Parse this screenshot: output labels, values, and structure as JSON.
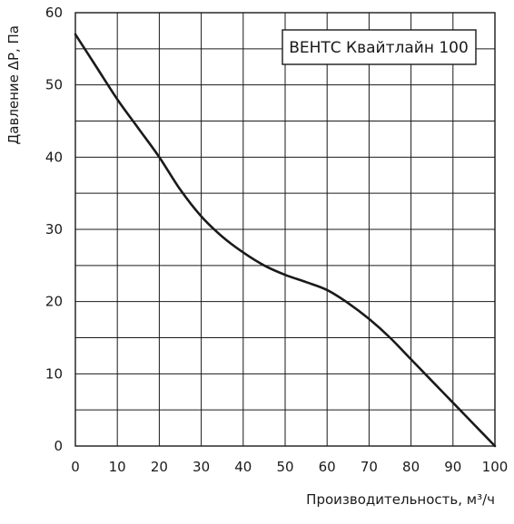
{
  "chart_data": {
    "type": "line",
    "title": "ВЕНТС Квайтлайн 100",
    "xlabel": "Производительность, м³/ч",
    "ylabel": "Давление ΔP, Па",
    "xlim": [
      0,
      100
    ],
    "ylim": [
      0,
      60
    ],
    "x_ticks": [
      0,
      10,
      20,
      30,
      40,
      50,
      60,
      70,
      80,
      90,
      100
    ],
    "y_ticks": [
      0,
      10,
      20,
      30,
      40,
      50,
      60
    ],
    "x_minor_step": 10,
    "y_minor_step": 5,
    "grid": true,
    "legend": "none",
    "series": [
      {
        "x": [
          0,
          5,
          10,
          15,
          20,
          25,
          30,
          35,
          40,
          45,
          50,
          55,
          60,
          65,
          70,
          75,
          80,
          85,
          90,
          95,
          100
        ],
        "y": [
          57,
          52.5,
          48,
          44,
          40,
          35.5,
          31.8,
          29,
          26.8,
          25,
          23.7,
          22.7,
          21.6,
          19.8,
          17.6,
          15,
          12,
          9,
          6,
          3,
          0
        ],
        "color": "#1a1a1a"
      }
    ]
  }
}
